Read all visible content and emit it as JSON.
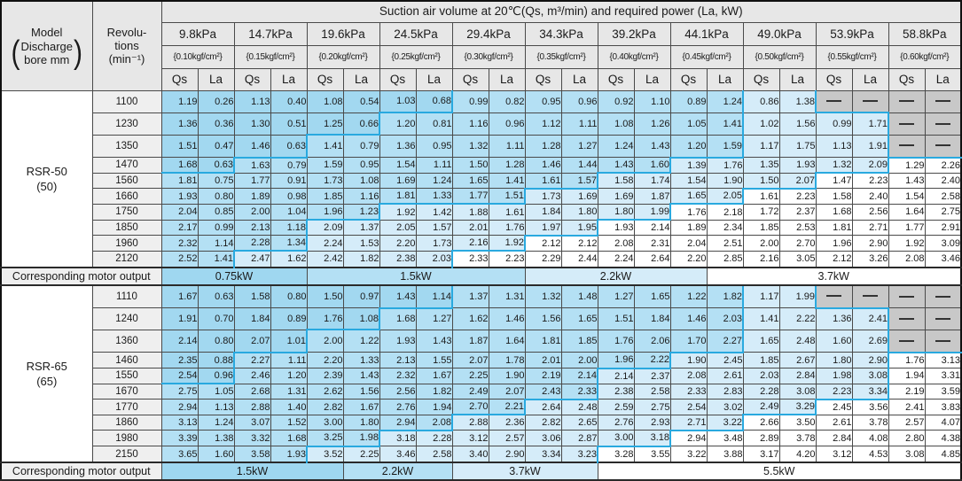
{
  "title": "Suction air volume at 20℃(Qs, m³/min) and required power (La, kW)",
  "model_header": {
    "title": "Model",
    "paren_open": "(",
    "paren_close": ")",
    "bracket_line1": "Discharge",
    "bracket_line2": "bore mm"
  },
  "rev_header": {
    "line1": "Revolu-",
    "line2": "tions",
    "line3": "(min⁻¹)"
  },
  "qs_label": "Qs",
  "la_label": "La",
  "motor_output_label": "Corresponding motor output",
  "pressures": [
    {
      "kpa": "9.8kPa",
      "kgf": "{0.10kgf/cm²}"
    },
    {
      "kpa": "14.7kPa",
      "kgf": "{0.15kgf/cm²}"
    },
    {
      "kpa": "19.6kPa",
      "kgf": "{0.20kgf/cm²}"
    },
    {
      "kpa": "24.5kPa",
      "kgf": "{0.25kgf/cm²}"
    },
    {
      "kpa": "29.4kPa",
      "kgf": "{0.30kgf/cm²}"
    },
    {
      "kpa": "34.3kPa",
      "kgf": "{0.35kgf/cm²}"
    },
    {
      "kpa": "39.2kPa",
      "kgf": "{0.40kgf/cm²}"
    },
    {
      "kpa": "44.1kPa",
      "kgf": "{0.45kgf/cm²}"
    },
    {
      "kpa": "49.0kPa",
      "kgf": "{0.50kgf/cm²}"
    },
    {
      "kpa": "53.9kPa",
      "kgf": "{0.55kgf/cm²}"
    },
    {
      "kpa": "58.8kPa",
      "kgf": "{0.60kgf/cm²}"
    }
  ],
  "colors": {
    "zone_blue_1": "#a2d8f0",
    "zone_blue_2": "#b4e0f4",
    "zone_blue_3": "#d5ecf9",
    "zone_white": "#ffffff",
    "no_data_gray": "#c8c8c8",
    "stair_border_blue": "#29a9df",
    "header_gray": "#e7e7e7"
  },
  "sections": [
    {
      "model": "RSR-50",
      "bore": "(50)",
      "motor": {
        "labels": [
          "0.75kW",
          "1.5kW",
          "2.2kW",
          "3.7kW"
        ],
        "spans": [
          4,
          6,
          5,
          7
        ]
      },
      "rows": [
        {
          "rpm": "1100",
          "zones": [
            8,
            16,
            22
          ],
          "values": [
            "1.19",
            "0.26",
            "1.13",
            "0.40",
            "1.08",
            "0.54",
            "1.03",
            "0.68",
            "0.99",
            "0.82",
            "0.95",
            "0.96",
            "0.92",
            "1.10",
            "0.89",
            "1.24",
            "0.86",
            "1.38",
            null,
            null,
            null,
            null
          ]
        },
        {
          "rpm": "1230",
          "zones": [
            6,
            16,
            22
          ],
          "values": [
            "1.36",
            "0.36",
            "1.30",
            "0.51",
            "1.25",
            "0.66",
            "1.20",
            "0.81",
            "1.16",
            "0.96",
            "1.12",
            "1.11",
            "1.08",
            "1.26",
            "1.05",
            "1.41",
            "1.02",
            "1.56",
            "0.99",
            "1.71",
            null,
            null
          ]
        },
        {
          "rpm": "1350",
          "zones": [
            4,
            16,
            22
          ],
          "values": [
            "1.51",
            "0.47",
            "1.46",
            "0.63",
            "1.41",
            "0.79",
            "1.36",
            "0.95",
            "1.32",
            "1.11",
            "1.28",
            "1.27",
            "1.24",
            "1.43",
            "1.20",
            "1.59",
            "1.17",
            "1.75",
            "1.13",
            "1.91",
            null,
            null
          ]
        },
        {
          "rpm": "1470",
          "zones": [
            2,
            14,
            20
          ],
          "values": [
            "1.68",
            "0.63",
            "1.63",
            "0.79",
            "1.59",
            "0.95",
            "1.54",
            "1.11",
            "1.50",
            "1.28",
            "1.46",
            "1.44",
            "1.43",
            "1.60",
            "1.39",
            "1.76",
            "1.35",
            "1.93",
            "1.32",
            "2.09",
            "1.29",
            "2.26"
          ]
        },
        {
          "rpm": "1560",
          "zones": [
            0,
            12,
            18
          ],
          "values": [
            "1.81",
            "0.75",
            "1.77",
            "0.91",
            "1.73",
            "1.08",
            "1.69",
            "1.24",
            "1.65",
            "1.41",
            "1.61",
            "1.57",
            "1.58",
            "1.74",
            "1.54",
            "1.90",
            "1.50",
            "2.07",
            "1.47",
            "2.23",
            "1.43",
            "2.40"
          ]
        },
        {
          "rpm": "1660",
          "zones": [
            0,
            10,
            16
          ],
          "values": [
            "1.93",
            "0.80",
            "1.89",
            "0.98",
            "1.85",
            "1.16",
            "1.81",
            "1.33",
            "1.77",
            "1.51",
            "1.73",
            "1.69",
            "1.69",
            "1.87",
            "1.65",
            "2.05",
            "1.61",
            "2.23",
            "1.58",
            "2.40",
            "1.54",
            "2.58"
          ]
        },
        {
          "rpm": "1750",
          "zones": [
            0,
            6,
            14
          ],
          "values": [
            "2.04",
            "0.85",
            "2.00",
            "1.04",
            "1.96",
            "1.23",
            "1.92",
            "1.42",
            "1.88",
            "1.61",
            "1.84",
            "1.80",
            "1.80",
            "1.99",
            "1.76",
            "2.18",
            "1.72",
            "2.37",
            "1.68",
            "2.56",
            "1.64",
            "2.75"
          ]
        },
        {
          "rpm": "1850",
          "zones": [
            0,
            4,
            12
          ],
          "values": [
            "2.17",
            "0.99",
            "2.13",
            "1.18",
            "2.09",
            "1.37",
            "2.05",
            "1.57",
            "2.01",
            "1.76",
            "1.97",
            "1.95",
            "1.93",
            "2.14",
            "1.89",
            "2.34",
            "1.85",
            "2.53",
            "1.81",
            "2.71",
            "1.77",
            "2.91"
          ]
        },
        {
          "rpm": "1960",
          "zones": [
            0,
            4,
            10
          ],
          "values": [
            "2.32",
            "1.14",
            "2.28",
            "1.34",
            "2.24",
            "1.53",
            "2.20",
            "1.73",
            "2.16",
            "1.92",
            "2.12",
            "2.12",
            "2.08",
            "2.31",
            "2.04",
            "2.51",
            "2.00",
            "2.70",
            "1.96",
            "2.90",
            "1.92",
            "3.09"
          ]
        },
        {
          "rpm": "2120",
          "zones": [
            0,
            2,
            8
          ],
          "values": [
            "2.52",
            "1.41",
            "2.47",
            "1.62",
            "2.42",
            "1.82",
            "2.38",
            "2.03",
            "2.33",
            "2.23",
            "2.29",
            "2.44",
            "2.24",
            "2.64",
            "2.20",
            "2.85",
            "2.16",
            "3.05",
            "2.12",
            "3.26",
            "2.08",
            "3.46"
          ]
        }
      ]
    },
    {
      "model": "RSR-65",
      "bore": "(65)",
      "motor": {
        "labels": [
          "1.5kW",
          "2.2kW",
          "3.7kW",
          "5.5kW"
        ],
        "spans": [
          5,
          3,
          4,
          10
        ]
      },
      "rows": [
        {
          "rpm": "1110",
          "zones": [
            8,
            16,
            22
          ],
          "values": [
            "1.67",
            "0.63",
            "1.58",
            "0.80",
            "1.50",
            "0.97",
            "1.43",
            "1.14",
            "1.37",
            "1.31",
            "1.32",
            "1.48",
            "1.27",
            "1.65",
            "1.22",
            "1.82",
            "1.17",
            "1.99",
            null,
            null,
            null,
            null
          ]
        },
        {
          "rpm": "1240",
          "zones": [
            6,
            16,
            22
          ],
          "values": [
            "1.91",
            "0.70",
            "1.84",
            "0.89",
            "1.76",
            "1.08",
            "1.68",
            "1.27",
            "1.62",
            "1.46",
            "1.56",
            "1.65",
            "1.51",
            "1.84",
            "1.46",
            "2.03",
            "1.41",
            "2.22",
            "1.36",
            "2.41",
            null,
            null
          ]
        },
        {
          "rpm": "1360",
          "zones": [
            4,
            16,
            22
          ],
          "values": [
            "2.14",
            "0.80",
            "2.07",
            "1.01",
            "2.00",
            "1.22",
            "1.93",
            "1.43",
            "1.87",
            "1.64",
            "1.81",
            "1.85",
            "1.76",
            "2.06",
            "1.70",
            "2.27",
            "1.65",
            "2.48",
            "1.60",
            "2.69",
            null,
            null
          ]
        },
        {
          "rpm": "1460",
          "zones": [
            2,
            14,
            20
          ],
          "values": [
            "2.35",
            "0.88",
            "2.27",
            "1.11",
            "2.20",
            "1.33",
            "2.13",
            "1.55",
            "2.07",
            "1.78",
            "2.01",
            "2.00",
            "1.96",
            "2.22",
            "1.90",
            "2.45",
            "1.85",
            "2.67",
            "1.80",
            "2.90",
            "1.76",
            "3.13"
          ]
        },
        {
          "rpm": "1550",
          "zones": [
            2,
            12,
            20
          ],
          "values": [
            "2.54",
            "0.96",
            "2.46",
            "1.20",
            "2.39",
            "1.43",
            "2.32",
            "1.67",
            "2.25",
            "1.90",
            "2.19",
            "2.14",
            "2.14",
            "2.37",
            "2.08",
            "2.61",
            "2.03",
            "2.84",
            "1.98",
            "3.08",
            "1.94",
            "3.31"
          ]
        },
        {
          "rpm": "1670",
          "zones": [
            0,
            12,
            20
          ],
          "values": [
            "2.75",
            "1.05",
            "2.68",
            "1.31",
            "2.62",
            "1.56",
            "2.56",
            "1.82",
            "2.49",
            "2.07",
            "2.43",
            "2.33",
            "2.38",
            "2.58",
            "2.33",
            "2.83",
            "2.28",
            "3.08",
            "2.23",
            "3.34",
            "2.19",
            "3.59"
          ]
        },
        {
          "rpm": "1770",
          "zones": [
            0,
            10,
            18
          ],
          "values": [
            "2.94",
            "1.13",
            "2.88",
            "1.40",
            "2.82",
            "1.67",
            "2.76",
            "1.94",
            "2.70",
            "2.21",
            "2.64",
            "2.48",
            "2.59",
            "2.75",
            "2.54",
            "3.02",
            "2.49",
            "3.29",
            "2.45",
            "3.56",
            "2.41",
            "3.83"
          ]
        },
        {
          "rpm": "1860",
          "zones": [
            0,
            8,
            16
          ],
          "values": [
            "3.13",
            "1.24",
            "3.07",
            "1.52",
            "3.00",
            "1.80",
            "2.94",
            "2.08",
            "2.88",
            "2.36",
            "2.82",
            "2.65",
            "2.76",
            "2.93",
            "2.71",
            "3.22",
            "2.66",
            "3.50",
            "2.61",
            "3.78",
            "2.57",
            "4.07"
          ]
        },
        {
          "rpm": "1980",
          "zones": [
            0,
            6,
            14
          ],
          "values": [
            "3.39",
            "1.38",
            "3.32",
            "1.68",
            "3.25",
            "1.98",
            "3.18",
            "2.28",
            "3.12",
            "2.57",
            "3.06",
            "2.87",
            "3.00",
            "3.18",
            "2.94",
            "3.48",
            "2.89",
            "3.78",
            "2.84",
            "4.08",
            "2.80",
            "4.38"
          ]
        },
        {
          "rpm": "2150",
          "zones": [
            0,
            4,
            12
          ],
          "values": [
            "3.65",
            "1.60",
            "3.58",
            "1.93",
            "3.52",
            "2.25",
            "3.46",
            "2.58",
            "3.40",
            "2.90",
            "3.34",
            "3.23",
            "3.28",
            "3.55",
            "3.22",
            "3.88",
            "3.17",
            "4.20",
            "3.12",
            "4.53",
            "3.08",
            "4.85"
          ]
        }
      ]
    }
  ]
}
